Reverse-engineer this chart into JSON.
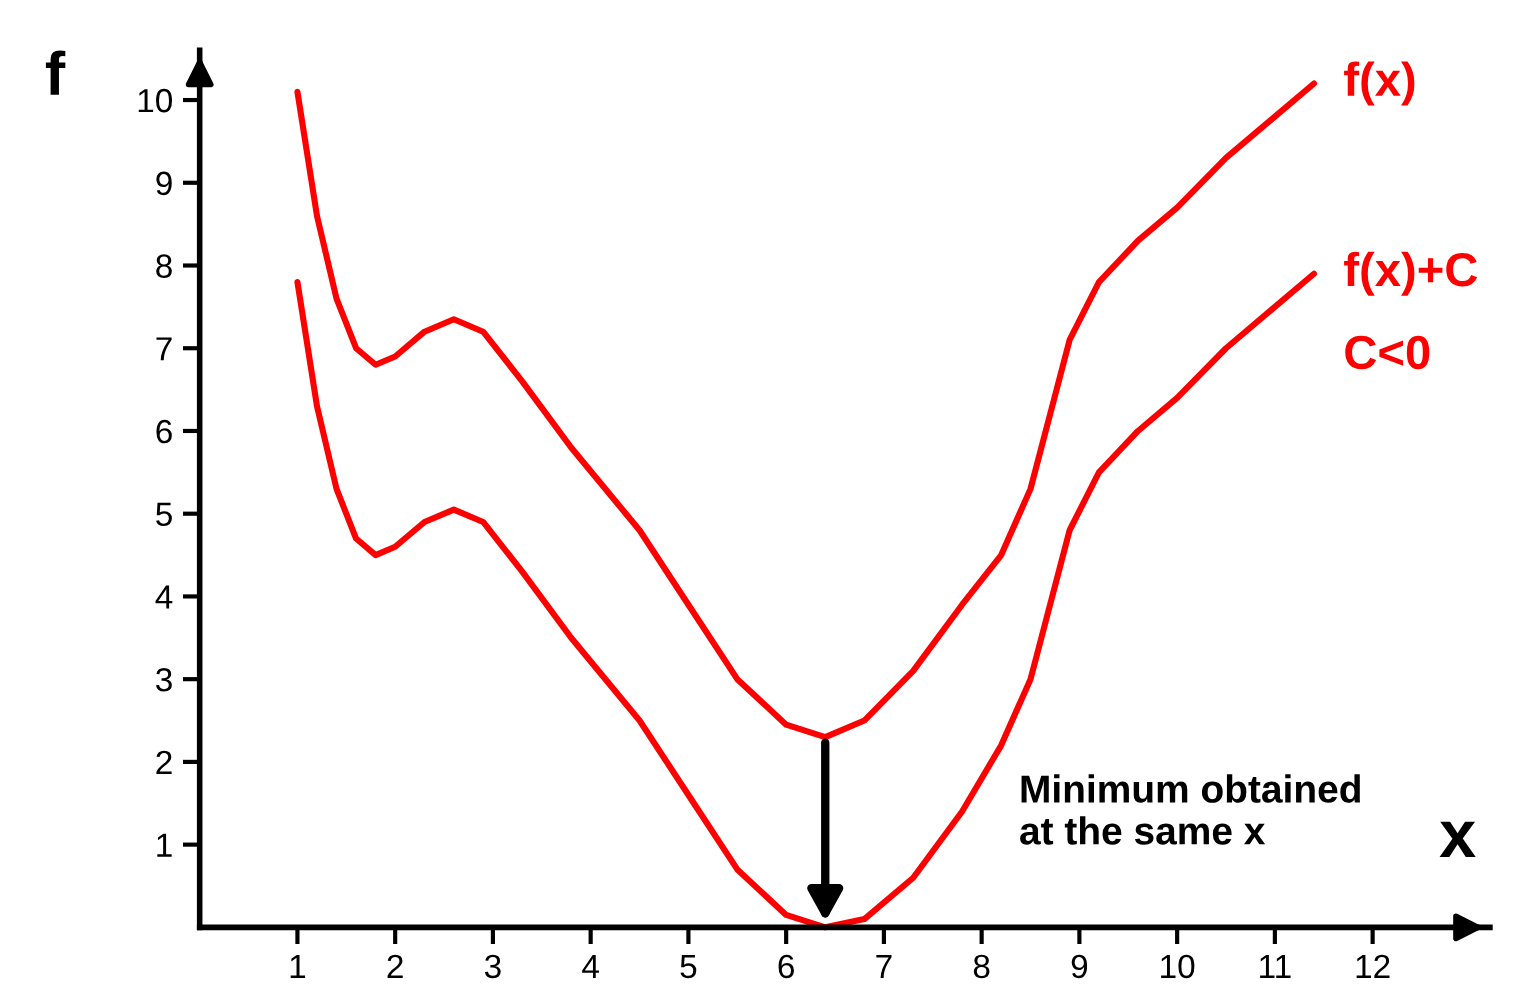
{
  "chart_data": {
    "type": "line",
    "xlabel": "x",
    "ylabel": "f",
    "xlim": [
      0,
      13.2
    ],
    "ylim": [
      0,
      10.6
    ],
    "xticks": [
      1,
      2,
      3,
      4,
      5,
      6,
      7,
      8,
      9,
      10,
      11,
      12
    ],
    "yticks": [
      1,
      2,
      3,
      4,
      5,
      6,
      7,
      8,
      9,
      10
    ],
    "x": [
      1.0,
      1.2,
      1.4,
      1.6,
      1.8,
      2.0,
      2.3,
      2.6,
      2.9,
      3.3,
      3.8,
      4.5,
      5.0,
      5.5,
      6.0,
      6.4,
      6.8,
      7.3,
      7.8,
      8.2,
      8.5,
      8.7,
      8.9,
      9.2,
      9.6,
      10.0,
      10.5,
      11.0,
      11.4
    ],
    "series": [
      {
        "name": "f(x)",
        "color": "#ff0000",
        "values": [
          10.1,
          8.6,
          7.6,
          7.0,
          6.8,
          6.9,
          7.2,
          7.35,
          7.2,
          6.6,
          5.8,
          4.8,
          3.9,
          3.0,
          2.45,
          2.3,
          2.5,
          3.1,
          3.9,
          4.5,
          5.3,
          6.2,
          7.1,
          7.8,
          8.3,
          8.7,
          9.3,
          9.8,
          10.2
        ]
      },
      {
        "name": "f(x)+C",
        "color": "#ff0000",
        "values": [
          7.8,
          6.3,
          5.3,
          4.7,
          4.5,
          4.6,
          4.9,
          5.05,
          4.9,
          4.3,
          3.5,
          2.5,
          1.6,
          0.7,
          0.15,
          0.0,
          0.1,
          0.6,
          1.4,
          2.2,
          3.0,
          3.9,
          4.8,
          5.5,
          6.0,
          6.4,
          7.0,
          7.5,
          7.9
        ]
      }
    ],
    "annotations": [
      "Minimum obtained\nat the same x",
      "C<0"
    ],
    "grid": false,
    "marker": "none",
    "line_style": "solid"
  }
}
